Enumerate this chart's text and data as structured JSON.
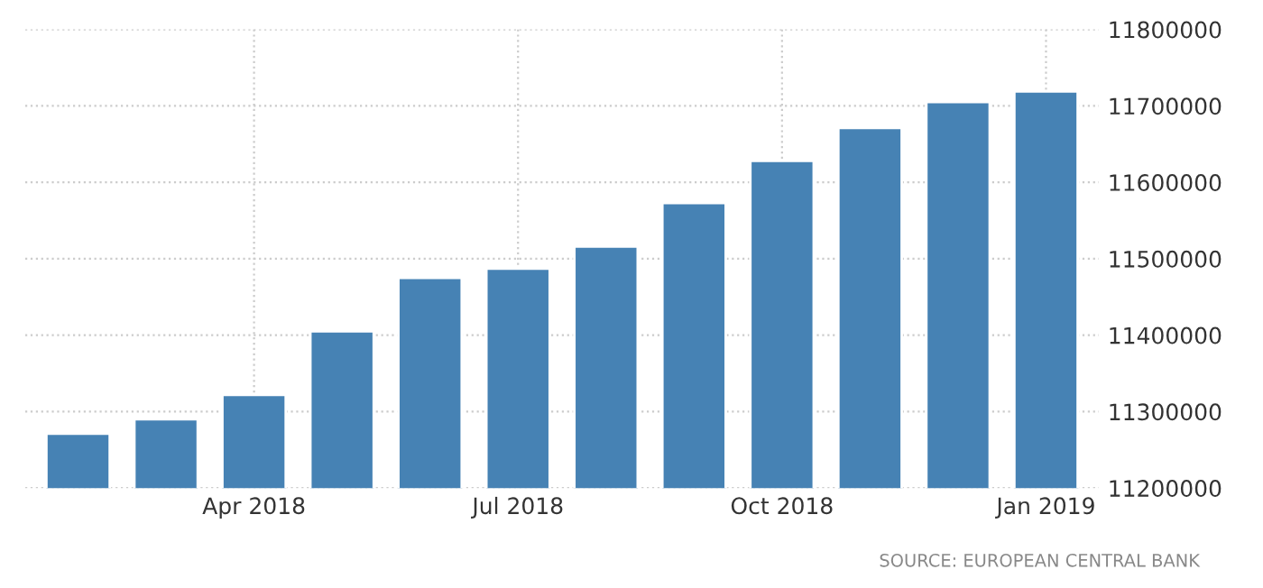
{
  "chart_data": {
    "type": "bar",
    "categories": [
      null,
      null,
      "Apr 2018",
      null,
      null,
      "Jul 2018",
      null,
      null,
      "Oct 2018",
      null,
      null,
      "Jan 2019"
    ],
    "values": [
      11271000,
      11290000,
      11322000,
      11405000,
      11475000,
      11487000,
      11516000,
      11573000,
      11628000,
      11671000,
      11705000,
      11719000
    ],
    "color": "#4682b4",
    "ylim": [
      11200000,
      11800000
    ],
    "yticks": [
      11200000,
      11300000,
      11400000,
      11500000,
      11600000,
      11700000,
      11800000
    ],
    "grid": true,
    "annotations": [
      "SOURCE: EUROPEAN CENTRAL BANK"
    ]
  }
}
